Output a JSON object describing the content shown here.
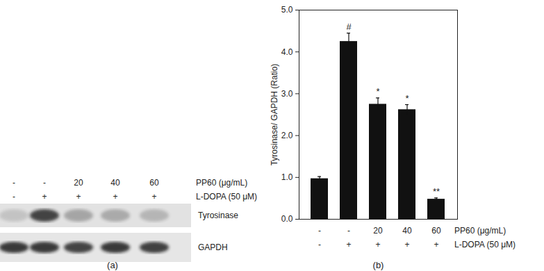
{
  "chart_data": {
    "type": "bar",
    "categories": [
      null,
      null,
      null,
      null,
      null
    ],
    "values": [
      0.97,
      4.25,
      2.75,
      2.62,
      0.48
    ],
    "errors": [
      0.05,
      0.2,
      0.15,
      0.12,
      0.03
    ],
    "annotations": [
      null,
      "#",
      "*",
      "*",
      "**"
    ],
    "y_label": "Tyrosinase/ GAPDH (Ratio)",
    "ylim": [
      0,
      5
    ],
    "yticks": [
      0,
      1,
      2,
      3,
      4,
      5
    ],
    "color": "#111111",
    "treatments": [
      {
        "label": "PP60 (μg/mL)",
        "values": [
          "-",
          "-",
          "20",
          "40",
          "60"
        ]
      },
      {
        "label": "L-DOPA (50 μM)",
        "values": [
          "-",
          "+",
          "+",
          "+",
          "+"
        ]
      }
    ],
    "panel_label": "(b)"
  },
  "blot": {
    "panel_label": "(a)",
    "treatments": [
      {
        "label": "PP60 (μg/mL)",
        "values": [
          "-",
          "-",
          "20",
          "40",
          "60"
        ]
      },
      {
        "label": "L-DOPA (50 μM)",
        "values": [
          "-",
          "+",
          "+",
          "+",
          "+"
        ]
      }
    ],
    "bands": [
      "Tyrosinase",
      "GAPDH"
    ]
  }
}
